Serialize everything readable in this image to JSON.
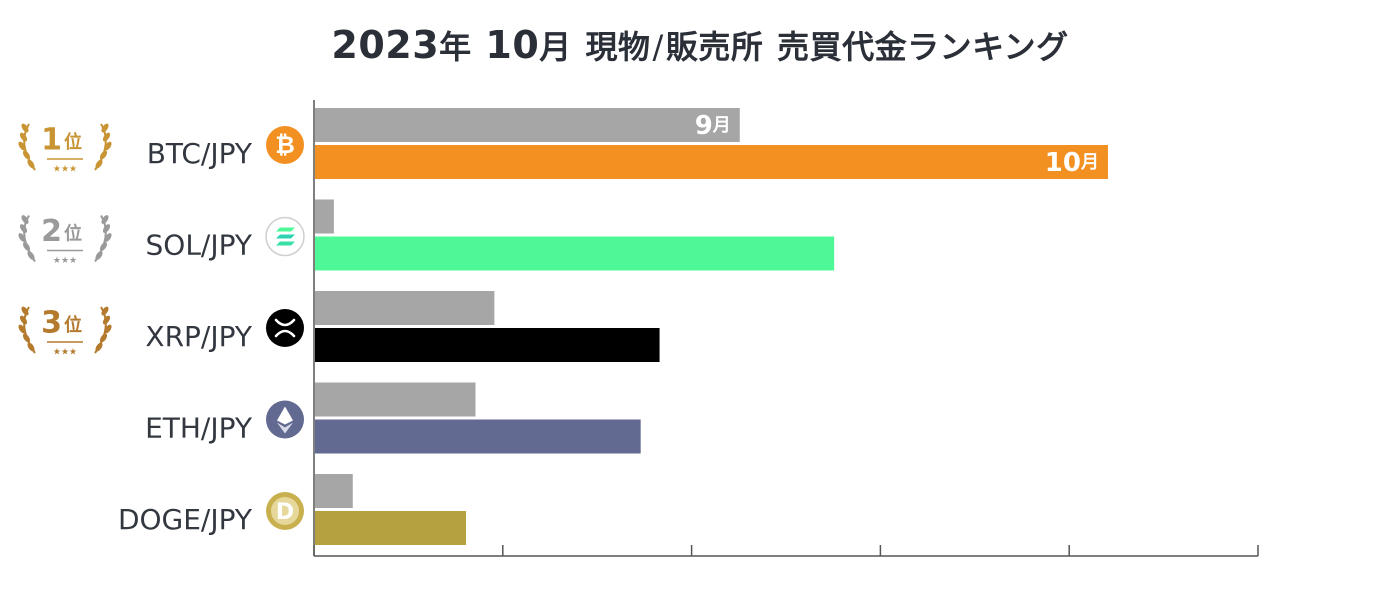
{
  "header": {
    "title_parts": [
      "2023",
      "年",
      "10",
      "月",
      "現物",
      "/",
      "販売所",
      "売買代金ランキング"
    ]
  },
  "colors": {
    "prev_month_bar": "#a6a6a6",
    "axis": "#555555",
    "gold": "#c99434",
    "silver": "#9a9a9a",
    "bronze": "#b47a2d"
  },
  "chart_data": {
    "type": "bar",
    "orientation": "horizontal",
    "title": "2023年10月 現物/販売所 売買代金ランキング",
    "xlabel": "",
    "ylabel": "",
    "xlim": [
      0,
      100
    ],
    "grid": false,
    "categories": [
      "BTC/JPY",
      "SOL/JPY",
      "XRP/JPY",
      "ETH/JPY",
      "DOGE/JPY"
    ],
    "ranks": [
      {
        "num": "1",
        "suffix": "位",
        "color": "#c99434"
      },
      {
        "num": "2",
        "suffix": "位",
        "color": "#9a9a9a"
      },
      {
        "num": "3",
        "suffix": "位",
        "color": "#b47a2d"
      }
    ],
    "series": [
      {
        "name": "9月",
        "num": "9",
        "suffix": "月",
        "color": "#a6a6a6",
        "values": [
          45,
          2,
          19,
          17,
          4
        ]
      },
      {
        "name": "10月",
        "num": "10",
        "suffix": "月",
        "colors": [
          "#f39022",
          "#4ef897",
          "#000000",
          "#636a91",
          "#b5a13f"
        ],
        "values": [
          84,
          55,
          36.5,
          34.5,
          16
        ]
      }
    ],
    "icons": [
      "bitcoin-icon",
      "solana-icon",
      "xrp-icon",
      "ethereum-icon",
      "dogecoin-icon"
    ]
  }
}
